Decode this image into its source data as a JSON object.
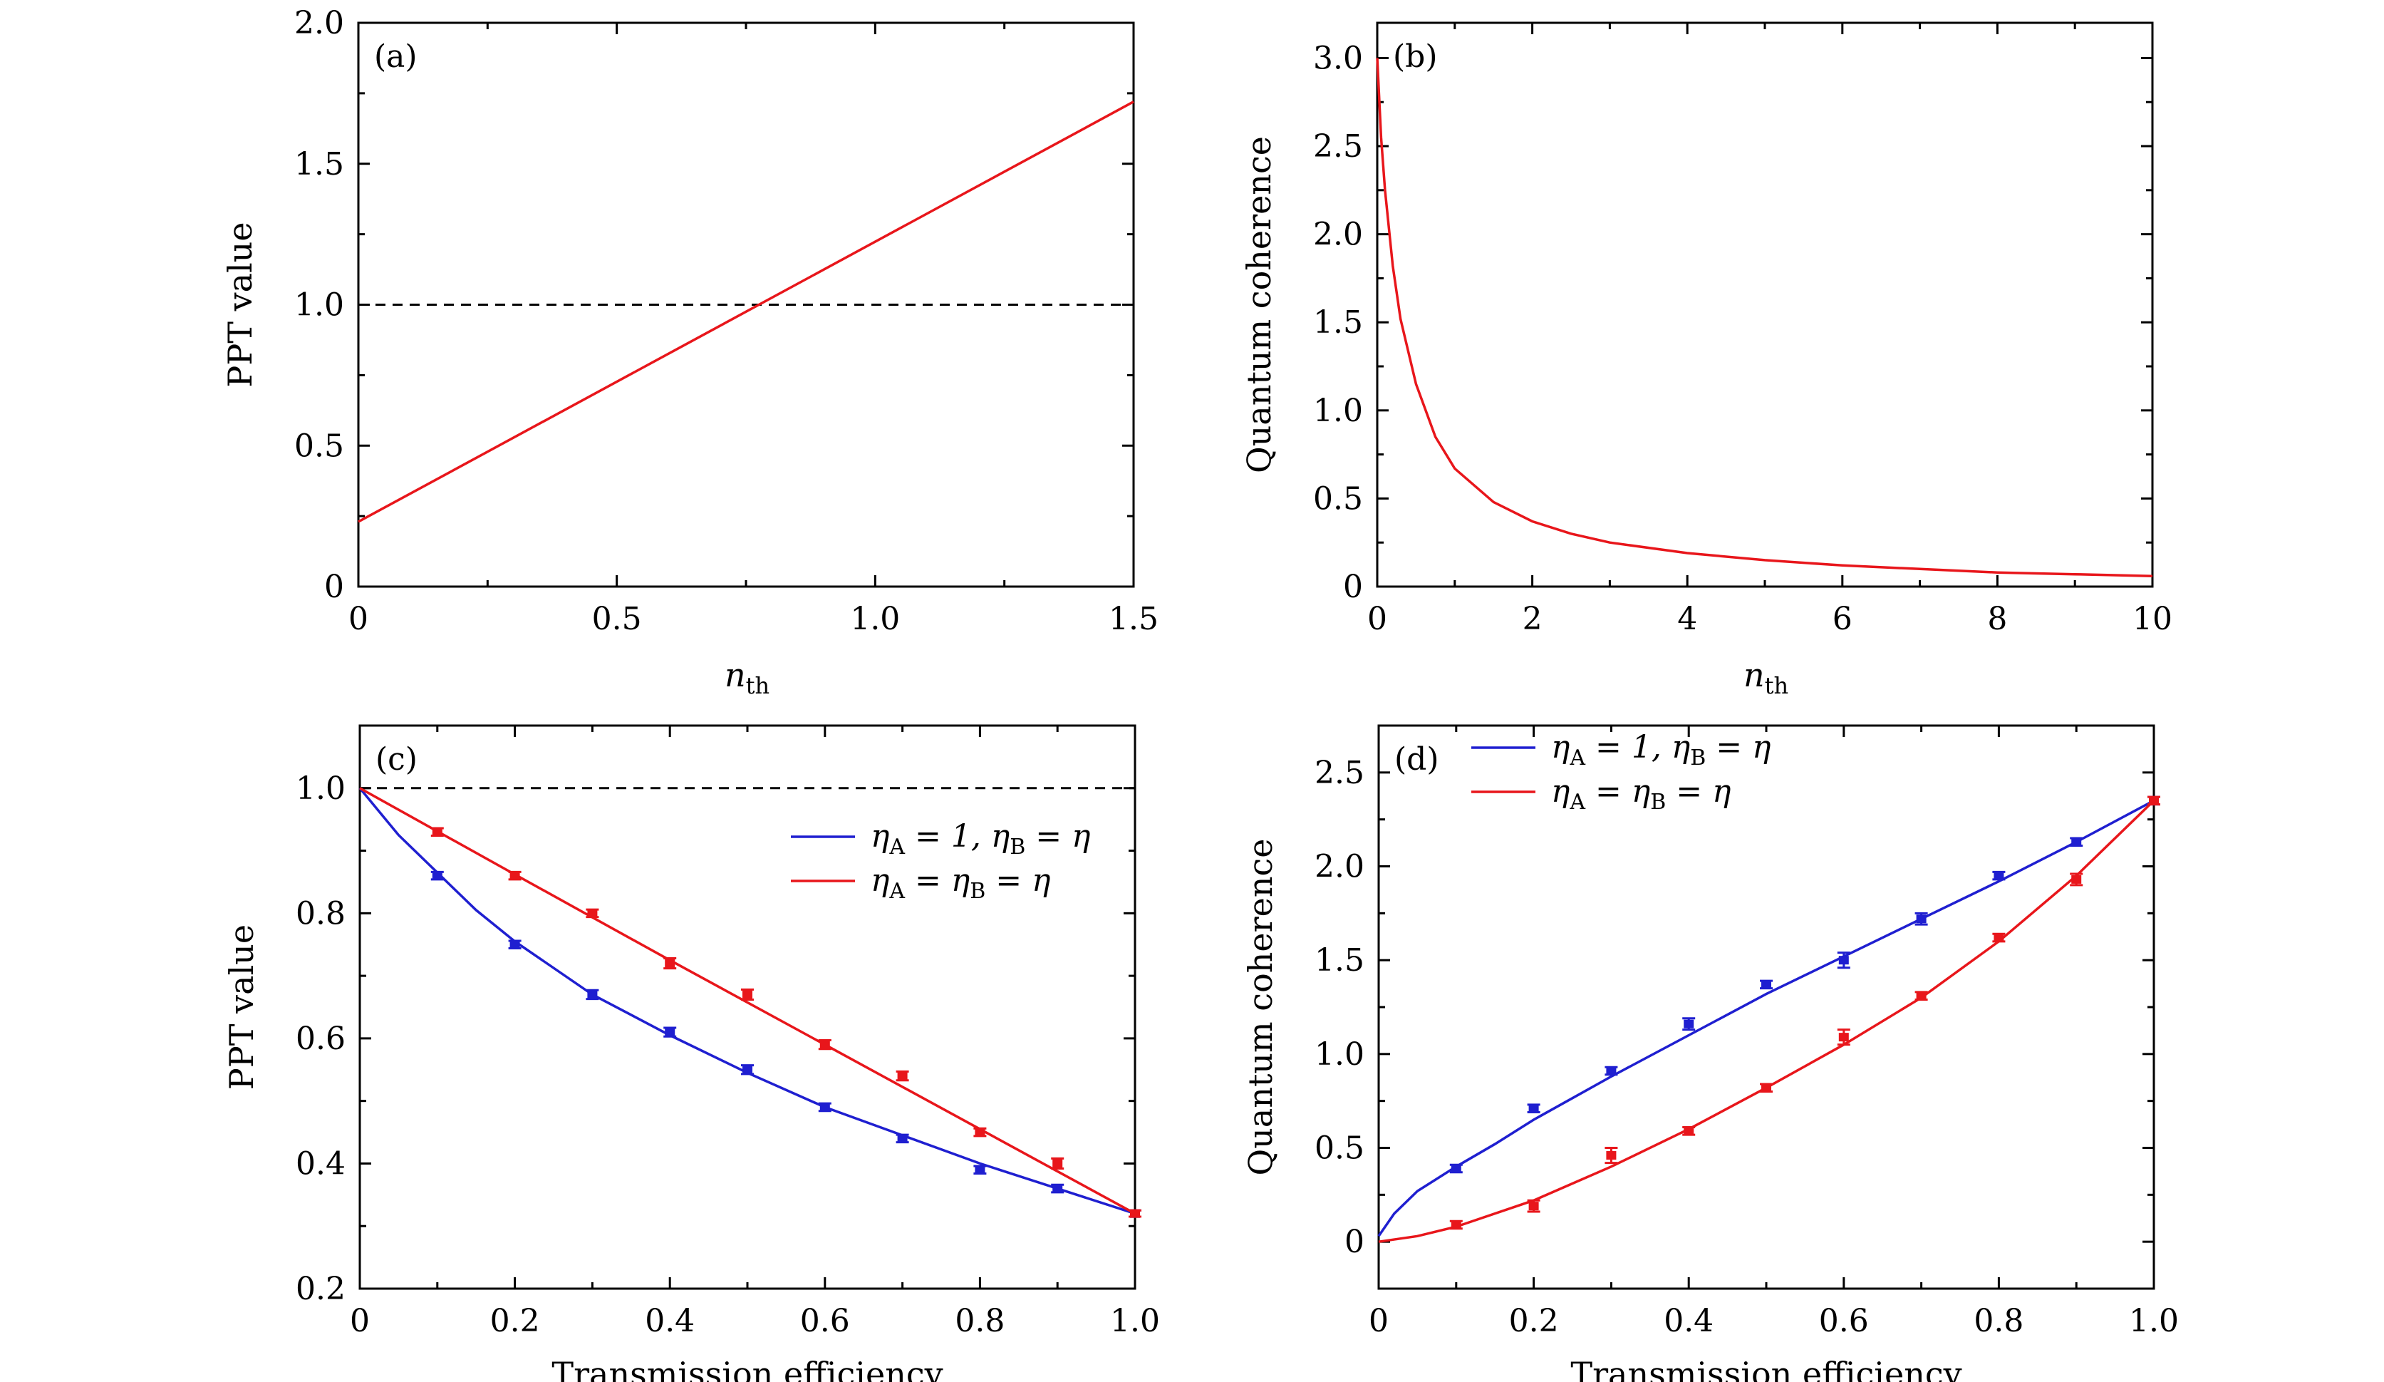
{
  "chart_data": [
    {
      "panel": "(a)",
      "type": "line",
      "xlabel_main": "n",
      "xlabel_sub": "th",
      "ylabel": "PPT value",
      "xlim": [
        0,
        1.5
      ],
      "ylim": [
        0,
        2.0
      ],
      "xticks": [
        0,
        0.5,
        1.0,
        1.5
      ],
      "xtick_labels": [
        "0",
        "0.5",
        "1.0",
        "1.5"
      ],
      "yticks": [
        0,
        0.5,
        1.0,
        1.5,
        2.0
      ],
      "ytick_labels": [
        "0",
        "0.5",
        "1.0",
        "1.5",
        "2.0"
      ],
      "reference_line_y": 1.0,
      "series": [
        {
          "color": "#e8161b",
          "x": [
            0,
            1.5
          ],
          "y": [
            0.23,
            1.72
          ]
        }
      ]
    },
    {
      "panel": "(b)",
      "type": "line",
      "xlabel_main": "n",
      "xlabel_sub": "th",
      "ylabel": "Quantum coherence",
      "xlim": [
        0,
        10
      ],
      "ylim": [
        0,
        3.2
      ],
      "xticks": [
        0,
        2,
        4,
        6,
        8,
        10
      ],
      "xtick_labels": [
        "0",
        "2",
        "4",
        "6",
        "8",
        "10"
      ],
      "yticks": [
        0,
        0.5,
        1.0,
        1.5,
        2.0,
        2.5,
        3.0
      ],
      "ytick_labels": [
        "0",
        "0.5",
        "1.0",
        "1.5",
        "2.0",
        "2.5",
        "3.0"
      ],
      "series": [
        {
          "color": "#e8161b",
          "x": [
            0,
            0.05,
            0.1,
            0.2,
            0.3,
            0.5,
            0.75,
            1.0,
            1.5,
            2,
            2.5,
            3,
            4,
            5,
            6,
            7,
            8,
            9,
            10
          ],
          "y": [
            3.0,
            2.55,
            2.25,
            1.82,
            1.52,
            1.15,
            0.85,
            0.67,
            0.48,
            0.37,
            0.3,
            0.25,
            0.19,
            0.15,
            0.12,
            0.1,
            0.08,
            0.07,
            0.06
          ]
        }
      ]
    },
    {
      "panel": "(c)",
      "type": "line",
      "xlabel": "Transmission efficiency",
      "ylabel": "PPT value",
      "xlim": [
        0,
        1.0
      ],
      "ylim": [
        0.2,
        1.1
      ],
      "xticks": [
        0,
        0.2,
        0.4,
        0.6,
        0.8,
        1.0
      ],
      "xtick_labels": [
        "0",
        "0.2",
        "0.4",
        "0.6",
        "0.8",
        "1.0"
      ],
      "yticks": [
        0.2,
        0.4,
        0.6,
        0.8,
        1.0
      ],
      "ytick_labels": [
        "0.2",
        "0.4",
        "0.6",
        "0.8",
        "1.0"
      ],
      "reference_line_y": 1.0,
      "legend_position": "right",
      "series": [
        {
          "legend_parts": [
            "η",
            "A",
            " = 1,  η",
            "B",
            " = η"
          ],
          "color": "#1f1fd0",
          "curve_x": [
            0,
            0.05,
            0.1,
            0.15,
            0.2,
            0.3,
            0.4,
            0.5,
            0.6,
            0.7,
            0.8,
            0.9,
            1.0
          ],
          "curve_y": [
            1.0,
            0.925,
            0.865,
            0.805,
            0.755,
            0.67,
            0.605,
            0.545,
            0.49,
            0.445,
            0.4,
            0.36,
            0.32
          ],
          "points_x": [
            0.1,
            0.2,
            0.3,
            0.4,
            0.5,
            0.6,
            0.7,
            0.8,
            0.9,
            1.0
          ],
          "points_y": [
            0.86,
            0.75,
            0.67,
            0.61,
            0.55,
            0.49,
            0.44,
            0.39,
            0.36,
            0.32
          ],
          "err": [
            0.006,
            0.006,
            0.007,
            0.007,
            0.007,
            0.006,
            0.006,
            0.006,
            0.006,
            0.005
          ]
        },
        {
          "legend_parts": [
            "η",
            "A",
            " = η",
            "B",
            " = η"
          ],
          "color": "#e8161b",
          "curve_x": [
            0,
            0.2,
            0.4,
            0.6,
            0.8,
            1.0
          ],
          "curve_y": [
            1.0,
            0.862,
            0.725,
            0.59,
            0.455,
            0.32
          ],
          "points_x": [
            0.1,
            0.2,
            0.3,
            0.4,
            0.5,
            0.6,
            0.7,
            0.8,
            0.9,
            1.0
          ],
          "points_y": [
            0.93,
            0.86,
            0.8,
            0.72,
            0.67,
            0.59,
            0.54,
            0.45,
            0.4,
            0.32
          ],
          "err": [
            0.006,
            0.006,
            0.006,
            0.008,
            0.008,
            0.007,
            0.007,
            0.006,
            0.008,
            0.005
          ]
        }
      ]
    },
    {
      "panel": "(d)",
      "type": "line",
      "xlabel": "Transmission efficiency",
      "ylabel": "Quantum coherence",
      "xlim": [
        0,
        1.0
      ],
      "ylim": [
        -0.25,
        2.75
      ],
      "xticks": [
        0,
        0.2,
        0.4,
        0.6,
        0.8,
        1.0
      ],
      "xtick_labels": [
        "0",
        "0.2",
        "0.4",
        "0.6",
        "0.8",
        "1.0"
      ],
      "yticks": [
        0,
        0.5,
        1.0,
        1.5,
        2.0,
        2.5
      ],
      "ytick_labels": [
        "0",
        "0.5",
        "1.0",
        "1.5",
        "2.0",
        "2.5"
      ],
      "legend_position": "top-left",
      "series": [
        {
          "legend_parts": [
            "η",
            "A",
            " = 1,  η",
            "B",
            " = η"
          ],
          "color": "#1f1fd0",
          "curve_x": [
            0,
            0.02,
            0.05,
            0.1,
            0.15,
            0.2,
            0.3,
            0.4,
            0.5,
            0.6,
            0.7,
            0.8,
            0.9,
            1.0
          ],
          "curve_y": [
            0.03,
            0.15,
            0.27,
            0.4,
            0.52,
            0.65,
            0.88,
            1.1,
            1.32,
            1.52,
            1.72,
            1.92,
            2.13,
            2.35
          ],
          "points_x": [
            0.1,
            0.2,
            0.3,
            0.4,
            0.5,
            0.6,
            0.7,
            0.8,
            0.9,
            1.0
          ],
          "points_y": [
            0.39,
            0.71,
            0.91,
            1.16,
            1.37,
            1.5,
            1.72,
            1.95,
            2.13,
            2.35
          ],
          "err": [
            0.02,
            0.02,
            0.02,
            0.03,
            0.02,
            0.04,
            0.03,
            0.02,
            0.02,
            0.02
          ]
        },
        {
          "legend_parts": [
            "η",
            "A",
            " = η",
            "B",
            " = η"
          ],
          "color": "#e8161b",
          "curve_x": [
            0,
            0.05,
            0.1,
            0.2,
            0.3,
            0.4,
            0.5,
            0.6,
            0.7,
            0.8,
            0.9,
            1.0
          ],
          "curve_y": [
            0,
            0.03,
            0.08,
            0.22,
            0.4,
            0.6,
            0.82,
            1.05,
            1.3,
            1.6,
            1.95,
            2.35
          ],
          "points_x": [
            0.1,
            0.2,
            0.3,
            0.4,
            0.5,
            0.6,
            0.7,
            0.8,
            0.9,
            1.0
          ],
          "points_y": [
            0.09,
            0.19,
            0.46,
            0.59,
            0.82,
            1.09,
            1.31,
            1.62,
            1.93,
            2.35
          ],
          "err": [
            0.02,
            0.03,
            0.04,
            0.02,
            0.02,
            0.04,
            0.02,
            0.02,
            0.03,
            0.02
          ]
        }
      ]
    }
  ]
}
